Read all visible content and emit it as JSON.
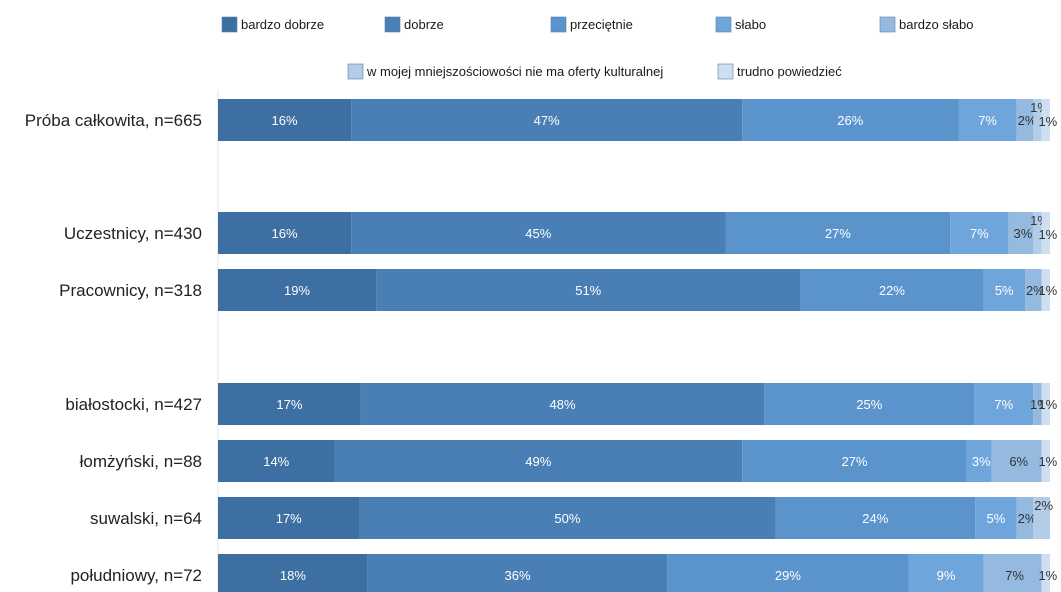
{
  "chart_data": {
    "type": "bar",
    "orientation": "horizontal",
    "stacked": "percent",
    "title": "",
    "xlabel": "",
    "ylabel": "",
    "xlim": [
      0,
      100
    ],
    "grid": false,
    "legend_position": "top",
    "categories": [
      "Próba całkowita, n=665",
      "Uczestnicy, n=430",
      "Pracownicy, n=318",
      "białostocki, n=427",
      "łomżyński, n=88",
      "suwalski, n=64",
      "południowy, n=72"
    ],
    "series": [
      {
        "name": "bardzo dobrze",
        "color": "#3d6fa2",
        "values": [
          16,
          16,
          19,
          17,
          14,
          17,
          18
        ],
        "labels": [
          "16%",
          "16%",
          "19%",
          "17%",
          "14%",
          "17%",
          "18%"
        ]
      },
      {
        "name": "dobrze",
        "color": "#4a7fb5",
        "values": [
          47,
          45,
          51,
          48,
          49,
          50,
          36
        ],
        "labels": [
          "47%",
          "45%",
          "51%",
          "48%",
          "49%",
          "50%",
          "36%"
        ]
      },
      {
        "name": "przeciętnie",
        "color": "#5b93cc",
        "values": [
          26,
          27,
          22,
          25,
          27,
          24,
          29
        ],
        "labels": [
          "26%",
          "27%",
          "22%",
          "25%",
          "27%",
          "24%",
          "29%"
        ]
      },
      {
        "name": "słabo",
        "color": "#6ea6dc",
        "values": [
          7,
          7,
          5,
          7,
          3,
          5,
          9
        ],
        "labels": [
          "7%",
          "7%",
          "5%",
          "7%",
          "3%",
          "5%",
          "9%"
        ]
      },
      {
        "name": "bardzo słabo",
        "color": "#95badf",
        "values": [
          2,
          3,
          2,
          1,
          6,
          2,
          7
        ],
        "labels": [
          "2%",
          "3%",
          "2%",
          "1%",
          "6%",
          "2%",
          "7%"
        ]
      },
      {
        "name": "w mojej mniejszościowości nie ma oferty kulturalnej",
        "color": "#b3cde9",
        "values": [
          1,
          1,
          0,
          0,
          0,
          2,
          0
        ],
        "labels": [
          "1%",
          "1%",
          "",
          "",
          "",
          "2%",
          ""
        ]
      },
      {
        "name": "trudno powiedzieć",
        "color": "#cfdff2",
        "values": [
          1,
          1,
          1,
          1,
          1,
          0,
          1
        ],
        "labels": [
          "1%",
          "1%",
          "1%",
          "1%",
          "1%",
          "",
          "1%"
        ]
      }
    ]
  }
}
